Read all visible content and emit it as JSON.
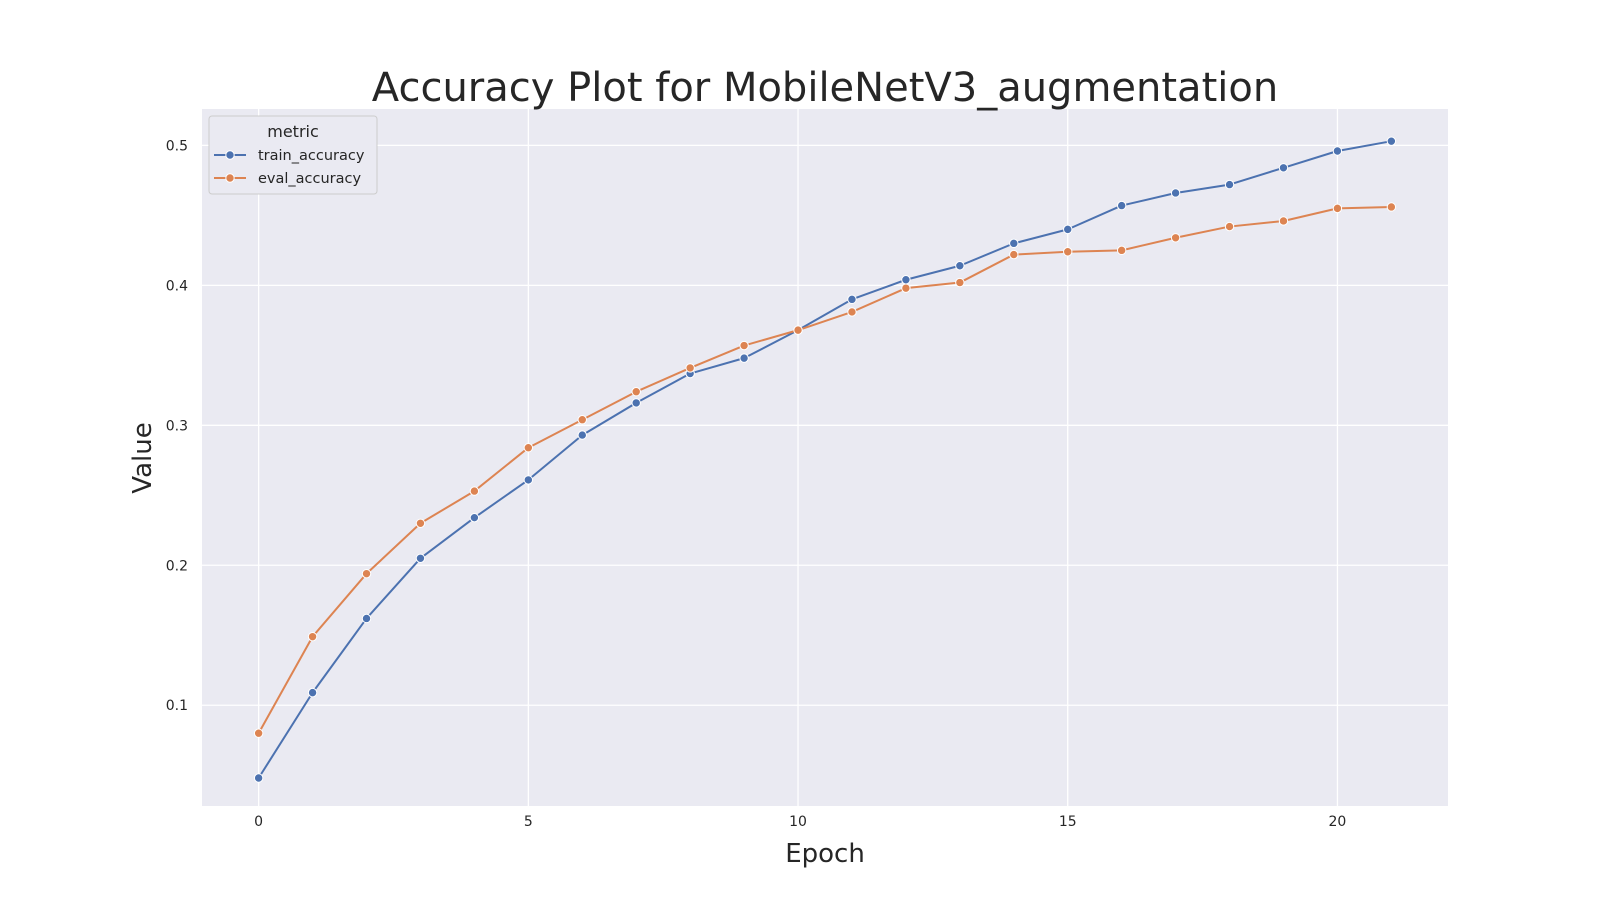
{
  "chart_data": {
    "type": "line",
    "title": "Accuracy Plot for MobileNetV3_augmentation",
    "xlabel": "Epoch",
    "ylabel": "Value",
    "x": [
      0,
      1,
      2,
      3,
      4,
      5,
      6,
      7,
      8,
      9,
      10,
      11,
      12,
      13,
      14,
      15,
      16,
      17,
      18,
      19,
      20,
      21
    ],
    "xlim": [
      -1.05,
      22.05
    ],
    "ylim": [
      0.028,
      0.526
    ],
    "xticks": [
      0,
      5,
      10,
      15,
      20
    ],
    "yticks": [
      0.1,
      0.2,
      0.3,
      0.4,
      0.5
    ],
    "xtick_labels": [
      "0",
      "5",
      "10",
      "15",
      "20"
    ],
    "ytick_labels": [
      "0.1",
      "0.2",
      "0.3",
      "0.4",
      "0.5"
    ],
    "grid": true,
    "legend": {
      "title": "metric",
      "placement": "top-left"
    },
    "series": [
      {
        "name": "train_accuracy",
        "color": "#4c72b0",
        "values": [
          0.048,
          0.109,
          0.162,
          0.205,
          0.234,
          0.261,
          0.293,
          0.316,
          0.337,
          0.348,
          0.368,
          0.39,
          0.404,
          0.414,
          0.43,
          0.44,
          0.457,
          0.466,
          0.472,
          0.484,
          0.496,
          0.503
        ]
      },
      {
        "name": "eval_accuracy",
        "color": "#dd8452",
        "values": [
          0.08,
          0.149,
          0.194,
          0.23,
          0.253,
          0.284,
          0.304,
          0.324,
          0.341,
          0.357,
          0.368,
          0.381,
          0.398,
          0.402,
          0.422,
          0.424,
          0.425,
          0.434,
          0.442,
          0.446,
          0.455,
          0.456
        ]
      }
    ],
    "colors": {
      "plot_background": "#eaeaf2",
      "grid": "#ffffff",
      "text": "#262626"
    }
  }
}
